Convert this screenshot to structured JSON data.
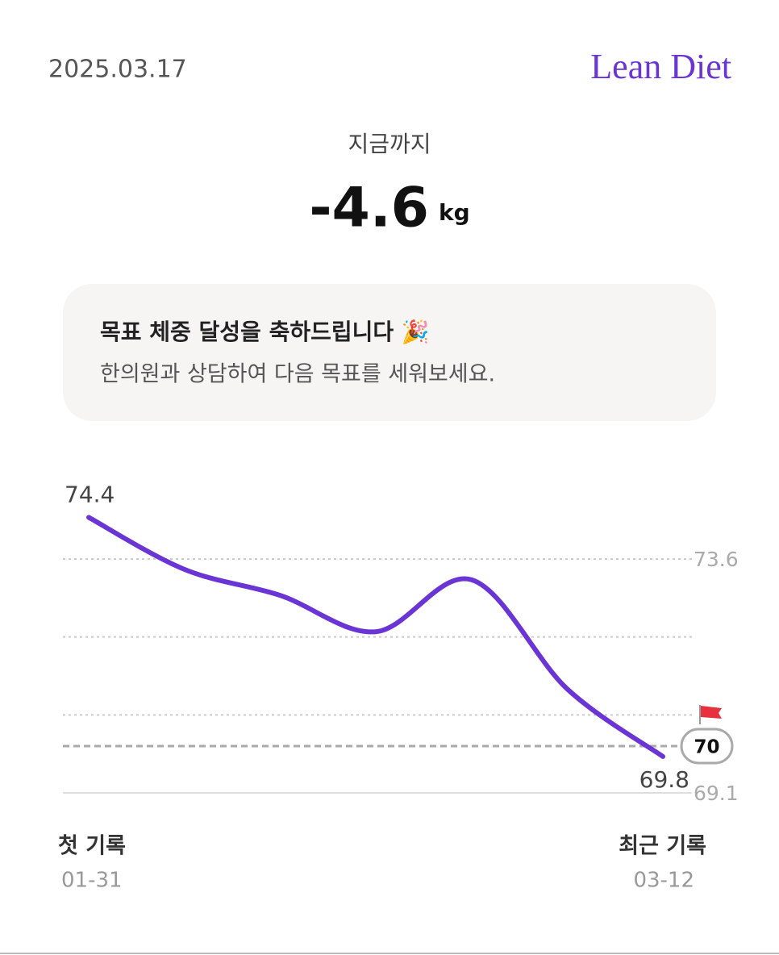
{
  "header": {
    "date": "2025.03.17",
    "brand": "Lean Diet"
  },
  "summary": {
    "label": "지금까지",
    "value": "-4.6",
    "unit": "kg"
  },
  "notice": {
    "title": "목표 체중 달성을 축하드립니다 🎉",
    "body": "한의원과 상담하여 다음 목표를 세워보세요."
  },
  "chart_data": {
    "type": "line",
    "categories": [
      "01-31",
      null,
      null,
      null,
      null,
      null,
      "03-12"
    ],
    "series": [
      {
        "color": "#6a35d4",
        "values": [
          74.4,
          73.4,
          72.9,
          72.2,
          73.2,
          71.1,
          69.8
        ]
      }
    ],
    "ylim": [
      69.1,
      73.6
    ],
    "yticks": [
      73.6,
      69.1
    ],
    "ygrid": [
      72.1,
      70.6
    ],
    "goal": 70,
    "start_label": "첫 기록",
    "end_label": "최근 기록"
  }
}
